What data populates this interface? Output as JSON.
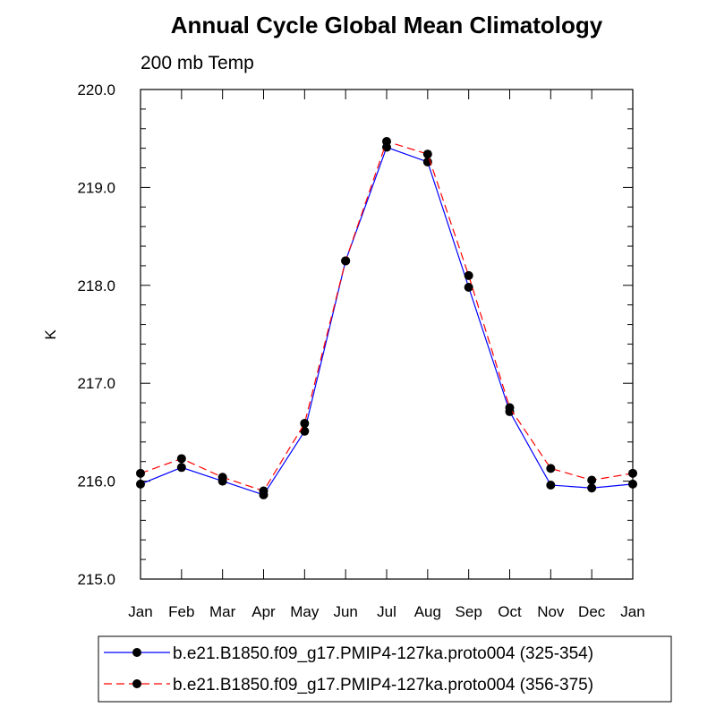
{
  "chart_data": {
    "type": "line",
    "title": "Annual Cycle Global Mean Climatology",
    "subtitle": "200 mb Temp",
    "xlabel": "",
    "ylabel": "K",
    "categories": [
      "Jan",
      "Feb",
      "Mar",
      "Apr",
      "May",
      "Jun",
      "Jul",
      "Aug",
      "Sep",
      "Oct",
      "Nov",
      "Dec",
      "Jan"
    ],
    "ylim": [
      215.0,
      220.0
    ],
    "yticks": [
      "215.0",
      "216.0",
      "217.0",
      "218.0",
      "219.0",
      "220.0"
    ],
    "grid": false,
    "legend_position": "bottom",
    "series": [
      {
        "name": "b.e21.B1850.f09_g17.PMIP4-127ka.proto004 (325-354)",
        "color": "#0000ff",
        "dash": "solid",
        "values": [
          215.97,
          216.14,
          216.0,
          215.86,
          216.51,
          218.25,
          219.41,
          219.26,
          217.98,
          216.71,
          215.96,
          215.93,
          215.97
        ]
      },
      {
        "name": "b.e21.B1850.f09_g17.PMIP4-127ka.proto004 (356-375)",
        "color": "#ff0000",
        "dash": "dashed",
        "values": [
          216.08,
          216.23,
          216.04,
          215.9,
          216.59,
          218.25,
          219.47,
          219.34,
          218.1,
          216.75,
          216.13,
          216.01,
          216.08
        ]
      }
    ]
  }
}
